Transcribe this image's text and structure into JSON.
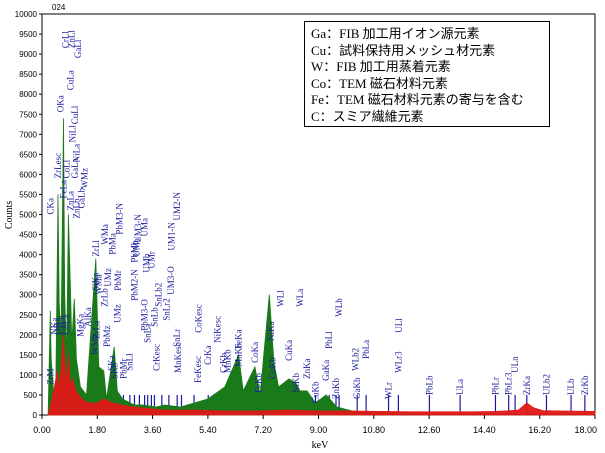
{
  "chart_data": {
    "type": "line",
    "title": "024",
    "xlabel": "keV",
    "ylabel": "Counts",
    "xlim": [
      0,
      18
    ],
    "ylim": [
      0,
      10000
    ],
    "x_ticks": [
      "0.00",
      "1.80",
      "3.60",
      "5.40",
      "7.20",
      "9.00",
      "10.80",
      "12.60",
      "14.40",
      "16.20",
      "18.00"
    ],
    "y_ticks": [
      "0",
      "500",
      "1000",
      "1500",
      "2000",
      "2500",
      "3000",
      "3500",
      "4000",
      "4500",
      "5000",
      "5500",
      "6000",
      "6500",
      "7000",
      "7500",
      "8000",
      "8500",
      "9000",
      "9500",
      "10000"
    ],
    "legend": [
      "Ga：FIB 加工用イオン源元素",
      "Cu：試料保持用メッシュ材元素",
      "W：FIB 加工用蒸着元素",
      "Co：TEM 磁石材料元素",
      "Fe：TEM 磁石材料元素の寄与を含む",
      "C：スミア繊維元素"
    ],
    "series": [
      {
        "color": "#1a7a1a",
        "points": [
          [
            0.2,
            0
          ],
          [
            0.27,
            2600
          ],
          [
            0.3,
            1400
          ],
          [
            0.38,
            500
          ],
          [
            0.45,
            700
          ],
          [
            0.52,
            5500
          ],
          [
            0.56,
            2800
          ],
          [
            0.62,
            1800
          ],
          [
            0.7,
            7400
          ],
          [
            0.74,
            3000
          ],
          [
            0.8,
            1400
          ],
          [
            0.86,
            5000
          ],
          [
            0.92,
            3300
          ],
          [
            0.97,
            1800
          ],
          [
            1.05,
            2900
          ],
          [
            1.12,
            1400
          ],
          [
            1.25,
            700
          ],
          [
            1.45,
            500
          ],
          [
            1.75,
            3900
          ],
          [
            1.85,
            1200
          ],
          [
            2.01,
            1100
          ],
          [
            2.1,
            400
          ],
          [
            2.35,
            1700
          ],
          [
            2.45,
            600
          ],
          [
            2.62,
            400
          ],
          [
            3.0,
            250
          ],
          [
            3.3,
            250
          ],
          [
            3.7,
            200
          ],
          [
            4.0,
            250
          ],
          [
            4.5,
            200
          ],
          [
            4.95,
            300
          ],
          [
            5.4,
            400
          ],
          [
            5.95,
            700
          ],
          [
            6.4,
            1500
          ],
          [
            6.55,
            600
          ],
          [
            6.93,
            1200
          ],
          [
            7.1,
            500
          ],
          [
            7.4,
            3000
          ],
          [
            7.55,
            1300
          ],
          [
            7.7,
            700
          ],
          [
            8.04,
            900
          ],
          [
            8.26,
            800
          ],
          [
            8.4,
            600
          ],
          [
            8.63,
            600
          ],
          [
            8.9,
            300
          ],
          [
            9.25,
            500
          ],
          [
            9.6,
            200
          ],
          [
            10.1,
            100
          ],
          [
            10.8,
            60
          ],
          [
            12.0,
            40
          ],
          [
            18.0,
            20
          ]
        ]
      },
      {
        "color": "#e01818",
        "points": [
          [
            0.2,
            0
          ],
          [
            0.27,
            200
          ],
          [
            0.35,
            500
          ],
          [
            0.5,
            1100
          ],
          [
            0.56,
            600
          ],
          [
            0.7,
            2000
          ],
          [
            0.78,
            700
          ],
          [
            0.86,
            1500
          ],
          [
            0.93,
            700
          ],
          [
            1.0,
            900
          ],
          [
            1.1,
            600
          ],
          [
            1.3,
            400
          ],
          [
            1.5,
            300
          ],
          [
            1.8,
            300
          ],
          [
            2.0,
            400
          ],
          [
            2.3,
            300
          ],
          [
            2.6,
            250
          ],
          [
            3.0,
            200
          ],
          [
            3.6,
            150
          ],
          [
            4.0,
            120
          ],
          [
            5.0,
            120
          ],
          [
            6.0,
            100
          ],
          [
            7.0,
            100
          ],
          [
            8.0,
            120
          ],
          [
            9.0,
            100
          ],
          [
            10.0,
            100
          ],
          [
            11.0,
            90
          ],
          [
            12.0,
            80
          ],
          [
            13.0,
            80
          ],
          [
            14.0,
            80
          ],
          [
            14.8,
            90
          ],
          [
            15.5,
            120
          ],
          [
            15.78,
            300
          ],
          [
            16.0,
            180
          ],
          [
            16.3,
            110
          ],
          [
            17.0,
            100
          ],
          [
            18.0,
            90
          ]
        ]
      }
    ],
    "peak_labels": [
      {
        "x": 0.28,
        "y": 750,
        "text": "ZrM"
      },
      {
        "x": 0.28,
        "y": 5000,
        "text": "CKa"
      },
      {
        "x": 0.4,
        "y": 2000,
        "text": "NKa"
      },
      {
        "x": 0.52,
        "y": 5900,
        "text": "ZrLesc"
      },
      {
        "x": 0.52,
        "y": 2000,
        "text": "OKa"
      },
      {
        "x": 0.6,
        "y": 7550,
        "text": "OKa"
      },
      {
        "x": 0.64,
        "y": 2000,
        "text": "CaLa"
      },
      {
        "x": 0.7,
        "y": 5400,
        "text": "FeLa"
      },
      {
        "x": 0.76,
        "y": 9150,
        "text": "CrLl"
      },
      {
        "x": 0.78,
        "y": 2000,
        "text": "CoLa"
      },
      {
        "x": 0.8,
        "y": 5900,
        "text": "CoLl"
      },
      {
        "x": 0.92,
        "y": 5100,
        "text": "ZnLa"
      },
      {
        "x": 0.93,
        "y": 8100,
        "text": "CuLa"
      },
      {
        "x": 0.96,
        "y": 9150,
        "text": "ZnLl"
      },
      {
        "x": 1.0,
        "y": 6800,
        "text": "NiLl"
      },
      {
        "x": 1.07,
        "y": 7250,
        "text": "CuLl"
      },
      {
        "x": 1.08,
        "y": 5900,
        "text": "GaLa"
      },
      {
        "x": 1.12,
        "y": 4900,
        "text": "ZnLb"
      },
      {
        "x": 1.12,
        "y": 6300,
        "text": "NiLa"
      },
      {
        "x": 1.17,
        "y": 8900,
        "text": "GaLl"
      },
      {
        "x": 1.28,
        "y": 5150,
        "text": "GaLb"
      },
      {
        "x": 1.25,
        "y": 1950,
        "text": "MgKa"
      },
      {
        "x": 1.38,
        "y": 5650,
        "text": "WMz"
      },
      {
        "x": 1.49,
        "y": 2200,
        "text": "AlKa"
      },
      {
        "x": 1.72,
        "y": 1500,
        "text": "WMb"
      },
      {
        "x": 1.74,
        "y": 3100,
        "text": "SiKa"
      },
      {
        "x": 1.76,
        "y": 3950,
        "text": "ZrLl"
      },
      {
        "x": 1.78,
        "y": 1900,
        "text": "ZrLa"
      },
      {
        "x": 1.84,
        "y": 3000,
        "text": "WMa"
      },
      {
        "x": 2.04,
        "y": 2700,
        "text": "ZrLb"
      },
      {
        "x": 2.05,
        "y": 4250,
        "text": "WMa"
      },
      {
        "x": 2.12,
        "y": 1700,
        "text": "PbMz"
      },
      {
        "x": 2.15,
        "y": 3200,
        "text": "UMz"
      },
      {
        "x": 2.26,
        "y": 1100,
        "text": "SKa"
      },
      {
        "x": 2.29,
        "y": 4000,
        "text": "PbMa"
      },
      {
        "x": 2.36,
        "y": 900,
        "text": "SKb"
      },
      {
        "x": 2.45,
        "y": 2300,
        "text": "UMz"
      },
      {
        "x": 2.48,
        "y": 3100,
        "text": "PbMr"
      },
      {
        "x": 2.52,
        "y": 4500,
        "text": "PbM3-N"
      },
      {
        "x": 2.65,
        "y": 900,
        "text": "PbMr"
      },
      {
        "x": 2.85,
        "y": 1100,
        "text": "SnLl"
      },
      {
        "x": 3.01,
        "y": 3800,
        "text": "PbMb"
      },
      {
        "x": 3.01,
        "y": 2850,
        "text": "PbM2-N"
      },
      {
        "x": 3.08,
        "y": 3950,
        "text": "UMa"
      },
      {
        "x": 3.12,
        "y": 4300,
        "text": "UM3-N"
      },
      {
        "x": 3.33,
        "y": 2100,
        "text": "PbM3-O"
      },
      {
        "x": 3.34,
        "y": 4450,
        "text": "UMa"
      },
      {
        "x": 3.4,
        "y": 3550,
        "text": "UMb"
      },
      {
        "x": 3.44,
        "y": 1800,
        "text": "SnLa"
      },
      {
        "x": 3.56,
        "y": 3650,
        "text": "UMr"
      },
      {
        "x": 3.67,
        "y": 2200,
        "text": "SnLb"
      },
      {
        "x": 3.73,
        "y": 1100,
        "text": "CrKesc"
      },
      {
        "x": 3.8,
        "y": 2700,
        "text": "SnLb2"
      },
      {
        "x": 4.06,
        "y": 2350,
        "text": "SnLr2"
      },
      {
        "x": 4.2,
        "y": 3000,
        "text": "UM3-O"
      },
      {
        "x": 4.22,
        "y": 4100,
        "text": "UM1-N"
      },
      {
        "x": 4.4,
        "y": 1700,
        "text": "SnLr"
      },
      {
        "x": 4.4,
        "y": 4850,
        "text": "UM2-N"
      },
      {
        "x": 4.43,
        "y": 1050,
        "text": "MnKesc"
      },
      {
        "x": 5.08,
        "y": 800,
        "text": "FeKesc"
      },
      {
        "x": 5.09,
        "y": 2050,
        "text": "CoKesc"
      },
      {
        "x": 5.41,
        "y": 1250,
        "text": "CrKa"
      },
      {
        "x": 5.72,
        "y": 1800,
        "text": "NiKesc"
      },
      {
        "x": 5.9,
        "y": 1050,
        "text": "CrKb"
      },
      {
        "x": 6.04,
        "y": 1050,
        "text": "MnKb"
      },
      {
        "x": 6.39,
        "y": 1650,
        "text": "FeKa"
      },
      {
        "x": 6.4,
        "y": 1200,
        "text": "MnKb"
      },
      {
        "x": 6.93,
        "y": 1300,
        "text": "CoKa"
      },
      {
        "x": 7.05,
        "y": 550,
        "text": "FeKb"
      },
      {
        "x": 7.46,
        "y": 1850,
        "text": "NiKa"
      },
      {
        "x": 7.5,
        "y": 900,
        "text": "CoKb"
      },
      {
        "x": 7.77,
        "y": 2700,
        "text": "WLl"
      },
      {
        "x": 8.04,
        "y": 1350,
        "text": "CuKa"
      },
      {
        "x": 8.4,
        "y": 2700,
        "text": "WLa"
      },
      {
        "x": 8.26,
        "y": 550,
        "text": "NiKb"
      },
      {
        "x": 8.63,
        "y": 900,
        "text": "ZnKa"
      },
      {
        "x": 8.9,
        "y": 300,
        "text": "CuKb"
      },
      {
        "x": 9.25,
        "y": 850,
        "text": "GaKa"
      },
      {
        "x": 9.35,
        "y": 1650,
        "text": "PbLl"
      },
      {
        "x": 9.57,
        "y": 400,
        "text": "ZnKb"
      },
      {
        "x": 9.67,
        "y": 2450,
        "text": "WLb"
      },
      {
        "x": 10.2,
        "y": 1100,
        "text": "WLb2"
      },
      {
        "x": 10.26,
        "y": 400,
        "text": "GaKb"
      },
      {
        "x": 10.55,
        "y": 1400,
        "text": "PbLa"
      },
      {
        "x": 11.28,
        "y": 400,
        "text": "WLr"
      },
      {
        "x": 11.6,
        "y": 1050,
        "text": "WLr3"
      },
      {
        "x": 11.62,
        "y": 2050,
        "text": "ULl"
      },
      {
        "x": 12.61,
        "y": 500,
        "text": "PbLb"
      },
      {
        "x": 13.61,
        "y": 500,
        "text": "ULa"
      },
      {
        "x": 14.76,
        "y": 500,
        "text": "PbLr"
      },
      {
        "x": 15.19,
        "y": 500,
        "text": "PbLr3"
      },
      {
        "x": 15.4,
        "y": 1050,
        "text": "ULn"
      },
      {
        "x": 15.78,
        "y": 500,
        "text": "ZrKa"
      },
      {
        "x": 16.42,
        "y": 500,
        "text": "ULb2"
      },
      {
        "x": 17.22,
        "y": 500,
        "text": "ULb"
      },
      {
        "x": 17.67,
        "y": 500,
        "text": "ZrKb"
      }
    ],
    "marker_lines_x": [
      0.28,
      0.39,
      0.52,
      0.64,
      0.7,
      0.78,
      0.85,
      0.93,
      1.01,
      1.1,
      1.19,
      1.25,
      1.49,
      1.74,
      1.78,
      1.84,
      2.04,
      2.12,
      2.31,
      2.34,
      2.45,
      2.52,
      2.65,
      2.86,
      3.01,
      3.17,
      3.34,
      3.44,
      3.56,
      3.66,
      3.9,
      4.13,
      4.4,
      4.54,
      4.95,
      5.41,
      5.9,
      6.4,
      6.93,
      7.06,
      7.47,
      7.65,
      8.04,
      8.26,
      8.4,
      8.63,
      8.9,
      9.25,
      9.35,
      9.57,
      9.67,
      10.26,
      10.55,
      11.28,
      11.6,
      12.61,
      13.61,
      14.76,
      15.19,
      15.4,
      15.78,
      16.42,
      17.22,
      17.67
    ],
    "marker_color": "#1a1aa0"
  }
}
